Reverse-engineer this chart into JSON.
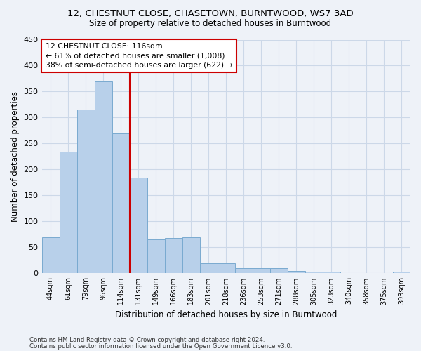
{
  "title1": "12, CHESTNUT CLOSE, CHASETOWN, BURNTWOOD, WS7 3AD",
  "title2": "Size of property relative to detached houses in Burntwood",
  "xlabel": "Distribution of detached houses by size in Burntwood",
  "ylabel": "Number of detached properties",
  "categories": [
    "44sqm",
    "61sqm",
    "79sqm",
    "96sqm",
    "114sqm",
    "131sqm",
    "149sqm",
    "166sqm",
    "183sqm",
    "201sqm",
    "218sqm",
    "236sqm",
    "253sqm",
    "271sqm",
    "288sqm",
    "305sqm",
    "323sqm",
    "340sqm",
    "358sqm",
    "375sqm",
    "393sqm"
  ],
  "values": [
    70,
    235,
    315,
    370,
    270,
    185,
    65,
    68,
    70,
    20,
    19,
    10,
    10,
    10,
    5,
    3,
    3,
    0,
    0,
    0,
    3
  ],
  "bar_color": "#b8d0ea",
  "bar_edge_color": "#7aaad0",
  "red_line_after_index": 4,
  "annotation_title": "12 CHESTNUT CLOSE: 116sqm",
  "annotation_line1": "← 61% of detached houses are smaller (1,008)",
  "annotation_line2": "38% of semi-detached houses are larger (622) →",
  "annotation_box_color": "#ffffff",
  "annotation_box_edge_color": "#cc0000",
  "red_line_color": "#cc0000",
  "grid_color": "#ccd8e8",
  "background_color": "#eef2f8",
  "footer1": "Contains HM Land Registry data © Crown copyright and database right 2024.",
  "footer2": "Contains public sector information licensed under the Open Government Licence v3.0.",
  "ylim": [
    0,
    450
  ],
  "yticks": [
    0,
    50,
    100,
    150,
    200,
    250,
    300,
    350,
    400,
    450
  ]
}
